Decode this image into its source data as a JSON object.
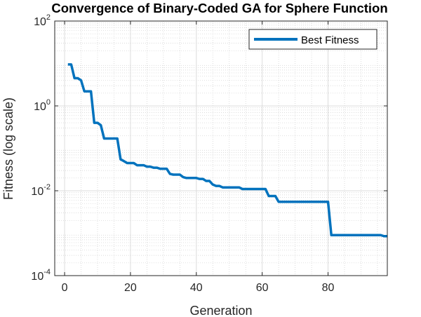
{
  "chart_data": {
    "type": "line",
    "title": "Convergence of Binary-Coded GA for Sphere Function",
    "xlabel": "Generation",
    "ylabel": "Fitness (log scale)",
    "xlim": [
      -3,
      98
    ],
    "ylim": [
      0.0001,
      100
    ],
    "yscale": "log",
    "grid": true,
    "minor_grid": true,
    "legend_position": "top-right",
    "x_ticks": [
      "0",
      "20",
      "40",
      "60",
      "80"
    ],
    "y_ticks": [
      {
        "base": "10",
        "exp": "-4"
      },
      {
        "base": "10",
        "exp": "-2"
      },
      {
        "base": "10",
        "exp": "0"
      },
      {
        "base": "10",
        "exp": "2"
      }
    ],
    "series": [
      {
        "name": "Best Fitness",
        "color": "#0072bd",
        "x": [
          1,
          2,
          3,
          4,
          5,
          6,
          7,
          8,
          9,
          10,
          11,
          12,
          13,
          14,
          15,
          16,
          17,
          18,
          19,
          20,
          21,
          22,
          23,
          24,
          25,
          26,
          27,
          28,
          29,
          30,
          31,
          32,
          33,
          34,
          35,
          36,
          37,
          38,
          39,
          40,
          41,
          42,
          43,
          44,
          45,
          46,
          47,
          48,
          49,
          50,
          51,
          52,
          53,
          54,
          55,
          56,
          57,
          58,
          59,
          60,
          61,
          62,
          63,
          64,
          65,
          66,
          67,
          68,
          69,
          70,
          71,
          72,
          73,
          74,
          75,
          76,
          77,
          78,
          79,
          80,
          81,
          82,
          83,
          84,
          85,
          86,
          87,
          88,
          89,
          90,
          91,
          92,
          93,
          94,
          95,
          96,
          97,
          98
        ],
        "values": [
          9.5,
          9.5,
          4.5,
          4.5,
          4,
          2.2,
          2.2,
          2.2,
          0.4,
          0.4,
          0.35,
          0.17,
          0.17,
          0.17,
          0.17,
          0.17,
          0.055,
          0.05,
          0.045,
          0.045,
          0.045,
          0.04,
          0.04,
          0.04,
          0.037,
          0.037,
          0.035,
          0.035,
          0.033,
          0.033,
          0.033,
          0.025,
          0.024,
          0.024,
          0.024,
          0.021,
          0.02,
          0.02,
          0.02,
          0.02,
          0.019,
          0.019,
          0.017,
          0.017,
          0.014,
          0.013,
          0.013,
          0.012,
          0.012,
          0.012,
          0.012,
          0.012,
          0.012,
          0.011,
          0.011,
          0.011,
          0.011,
          0.011,
          0.011,
          0.011,
          0.011,
          0.0075,
          0.0075,
          0.0075,
          0.0055,
          0.0055,
          0.0055,
          0.0055,
          0.0055,
          0.0055,
          0.0055,
          0.0055,
          0.0055,
          0.0055,
          0.0055,
          0.0055,
          0.0055,
          0.0055,
          0.0055,
          0.0055,
          0.0009,
          0.0009,
          0.0009,
          0.0009,
          0.0009,
          0.0009,
          0.0009,
          0.0009,
          0.0009,
          0.0009,
          0.0009,
          0.0009,
          0.0009,
          0.0009,
          0.0009,
          0.0009,
          0.00085,
          0.00085
        ]
      }
    ]
  }
}
